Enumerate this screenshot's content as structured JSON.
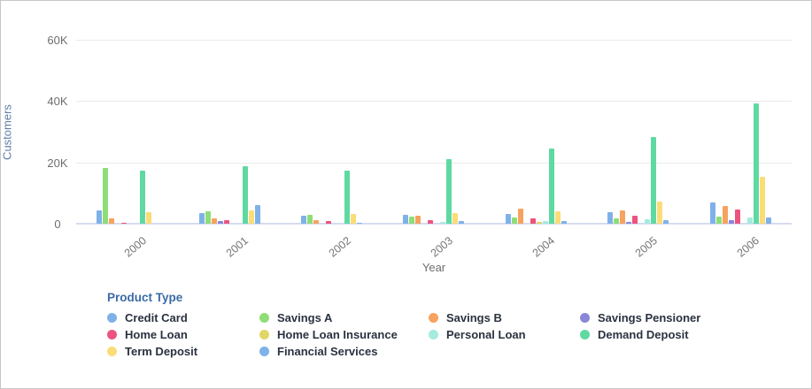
{
  "chart_data": {
    "type": "bar",
    "title": "",
    "xlabel": "Year",
    "ylabel": "Customers",
    "legend_title": "Product Type",
    "legend_position": "bottom",
    "grid": true,
    "ylim": [
      0,
      60000
    ],
    "yticks": [
      {
        "value": 0,
        "label": "0"
      },
      {
        "value": 20000,
        "label": "20K"
      },
      {
        "value": 40000,
        "label": "40K"
      },
      {
        "value": 60000,
        "label": "60K"
      }
    ],
    "categories": [
      "2000",
      "2001",
      "2002",
      "2003",
      "2004",
      "2005",
      "2006"
    ],
    "series": [
      {
        "name": "Credit Card",
        "color": "#7fb1e8",
        "values": [
          4300,
          3500,
          2500,
          3000,
          3200,
          3700,
          7000
        ]
      },
      {
        "name": "Savings A",
        "color": "#8ede77",
        "values": [
          18200,
          3900,
          2900,
          2400,
          1900,
          1800,
          2300
        ]
      },
      {
        "name": "Savings B",
        "color": "#f7a25e",
        "values": [
          1800,
          1600,
          1100,
          2500,
          4800,
          4400,
          5700
        ]
      },
      {
        "name": "Savings Pensioner",
        "color": "#8986d7",
        "values": [
          0,
          1000,
          0,
          0,
          0,
          500,
          1200
        ]
      },
      {
        "name": "Home Loan",
        "color": "#ec537e",
        "values": [
          400,
          1300,
          800,
          1300,
          1800,
          2500,
          4500
        ]
      },
      {
        "name": "Home Loan Insurance",
        "color": "#e2d666",
        "values": [
          0,
          0,
          0,
          0,
          500,
          0,
          0
        ]
      },
      {
        "name": "Personal Loan",
        "color": "#a5ebde",
        "values": [
          0,
          0,
          0,
          600,
          900,
          1400,
          1900
        ]
      },
      {
        "name": "Demand Deposit",
        "color": "#5fd9a2",
        "values": [
          17300,
          18700,
          17200,
          21000,
          24500,
          28300,
          39300
        ]
      },
      {
        "name": "Term Deposit",
        "color": "#fbdc77",
        "values": [
          3700,
          4200,
          3300,
          3500,
          4000,
          7200,
          15200
        ]
      },
      {
        "name": "Financial Services",
        "color": "#7eb2e9",
        "values": [
          0,
          6000,
          400,
          800,
          900,
          1200,
          2000
        ]
      }
    ]
  }
}
